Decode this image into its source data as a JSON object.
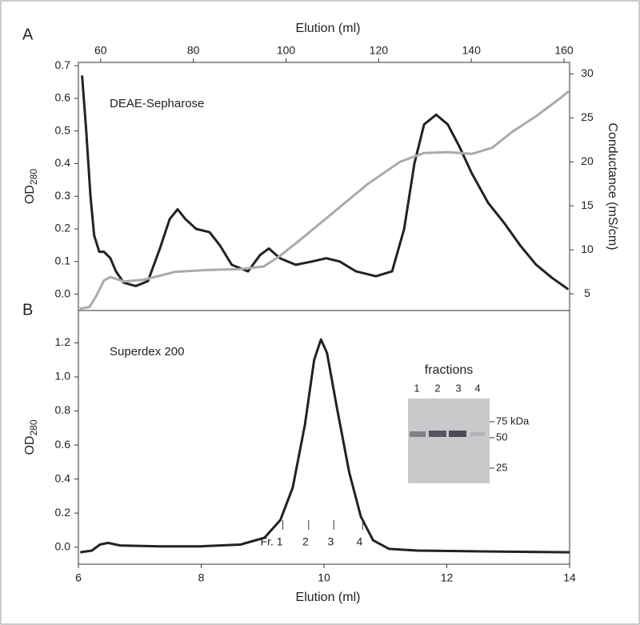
{
  "chart_data": [
    {
      "type": "line",
      "panel": "A",
      "xlabel": "Elution (ml)",
      "ylabel": "OD",
      "ylabel_sub": "280",
      "y2label": "Conductance (mS/cm)",
      "annotation": "DEAE-Sepharose",
      "xlim": [
        55.2,
        161.2
      ],
      "xticks": [
        60,
        80,
        100,
        120,
        140,
        160
      ],
      "ylim": [
        -0.05,
        0.71
      ],
      "yticks": [
        {
          "value": 0,
          "label": "0.0"
        },
        0.1,
        0.2,
        0.3,
        0.4,
        0.5,
        0.6,
        0.7
      ],
      "y2lim": [
        3.1,
        31.3
      ],
      "y2ticks": [
        5,
        10,
        15,
        20,
        25,
        30
      ],
      "series": [
        {
          "color": "#222222",
          "x": [
            56.0,
            56.9,
            57.8,
            58.6,
            59.7,
            60.7,
            62.1,
            63.3,
            65.0,
            67.6,
            70.2,
            72.8,
            74.9,
            76.6,
            78.3,
            80.6,
            83.5,
            85.7,
            88.3,
            91.8,
            94.4,
            96.3,
            98.7,
            102.1,
            105.6,
            108.7,
            111.6,
            115.1,
            119.4,
            122.9,
            125.5,
            127.7,
            129.8,
            132.4,
            134.9,
            137.5,
            140.1,
            143.6,
            147.0,
            150.5,
            154.0,
            157.4,
            160.9
          ],
          "values": [
            0.67,
            0.5,
            0.3,
            0.18,
            0.13,
            0.13,
            0.11,
            0.07,
            0.035,
            0.025,
            0.04,
            0.14,
            0.23,
            0.26,
            0.23,
            0.2,
            0.19,
            0.15,
            0.09,
            0.07,
            0.12,
            0.14,
            0.11,
            0.09,
            0.1,
            0.11,
            0.1,
            0.07,
            0.055,
            0.07,
            0.2,
            0.4,
            0.52,
            0.55,
            0.52,
            0.45,
            0.37,
            0.28,
            0.22,
            0.15,
            0.09,
            0.05,
            0.015
          ]
        },
        {
          "color": "#aaaaaa",
          "axis": "y2",
          "x": [
            55.5,
            57.6,
            59.0,
            60.7,
            62.1,
            65.0,
            69.3,
            76.2,
            83.1,
            90.1,
            95.2,
            98.7,
            103.9,
            110.8,
            117.7,
            124.6,
            129.8,
            134.9,
            140.1,
            144.5,
            148.8,
            154.0,
            159.1,
            161.0
          ],
          "values": [
            3.3,
            3.5,
            4.7,
            6.5,
            6.9,
            6.4,
            6.6,
            7.5,
            7.7,
            7.8,
            8.1,
            9.3,
            11.5,
            14.5,
            17.5,
            20.0,
            21.0,
            21.1,
            20.9,
            21.6,
            23.4,
            25.2,
            27.2,
            28.0
          ]
        }
      ]
    },
    {
      "type": "line",
      "panel": "B",
      "xlabel": "Elution (ml)",
      "ylabel": "OD",
      "ylabel_sub": "280",
      "annotation": "Superdex 200",
      "xlim": [
        6,
        14
      ],
      "xticks": [
        6,
        8,
        10,
        12,
        14
      ],
      "ylim": [
        -0.1,
        1.39
      ],
      "yticks": [
        {
          "value": 0,
          "label": "0.0"
        },
        0.2,
        0.4,
        0.6,
        0.8,
        {
          "value": 1,
          "label": "1.0"
        },
        1.2
      ],
      "series": [
        {
          "color": "#222222",
          "x": [
            6.03,
            6.22,
            6.35,
            6.48,
            6.68,
            7.33,
            7.99,
            8.64,
            9.03,
            9.29,
            9.49,
            9.69,
            9.84,
            9.95,
            10.05,
            10.21,
            10.41,
            10.6,
            10.8,
            11.06,
            11.52,
            12.56,
            14.0
          ],
          "values": [
            -0.03,
            -0.02,
            0.015,
            0.025,
            0.01,
            0.005,
            0.005,
            0.015,
            0.055,
            0.16,
            0.35,
            0.72,
            1.1,
            1.22,
            1.14,
            0.82,
            0.44,
            0.18,
            0.04,
            -0.01,
            -0.02,
            -0.025,
            -0.03
          ]
        }
      ],
      "fractions": {
        "x": [
          9.33,
          9.75,
          10.16,
          10.63
        ],
        "labels": [
          "Fr. 1",
          "2",
          "3",
          "4"
        ]
      },
      "inset": {
        "title": "fractions",
        "lanes": [
          "1",
          "2",
          "3",
          "4"
        ],
        "markers": [
          "75 kDa",
          "50",
          "25"
        ]
      }
    }
  ]
}
